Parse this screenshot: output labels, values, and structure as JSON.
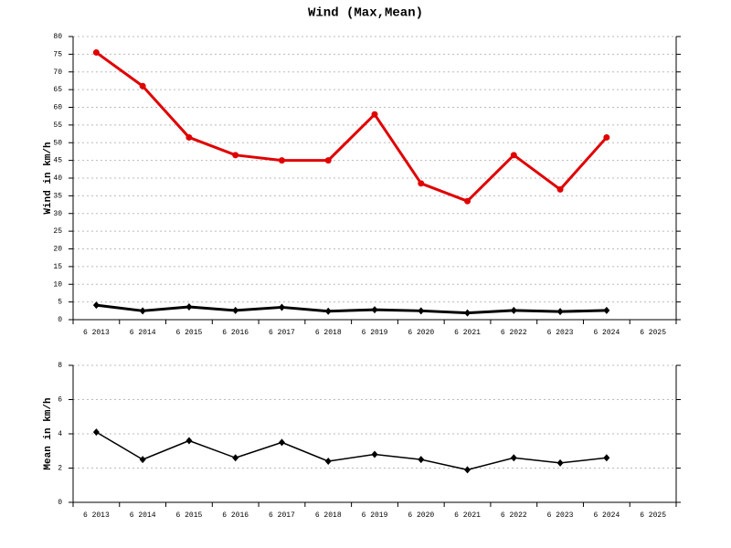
{
  "chart_data": [
    {
      "type": "line",
      "title": "Wind (Max,Mean)",
      "y_label": "Wind in km/h",
      "categories": [
        "6 2013",
        "6 2014",
        "6 2015",
        "6 2016",
        "6 2017",
        "6 2018",
        "6 2019",
        "6 2020",
        "6 2021",
        "6 2022",
        "6 2023",
        "6 2024",
        "6 2025"
      ],
      "series": [
        {
          "color": "#e00000",
          "marker": "circle",
          "values": [
            75.5,
            66,
            51.5,
            46.5,
            45,
            45,
            58,
            38.5,
            33.5,
            46.5,
            36.8,
            51.5,
            null
          ]
        },
        {
          "color": "#000000",
          "marker": "diamond",
          "values": [
            4.1,
            2.5,
            3.6,
            2.6,
            3.5,
            2.4,
            2.8,
            2.5,
            1.9,
            2.6,
            2.3,
            2.6,
            null
          ]
        }
      ],
      "ylim": [
        0,
        80
      ],
      "yticks": [
        0,
        5,
        10,
        15,
        20,
        25,
        30,
        35,
        40,
        45,
        50,
        55,
        60,
        65,
        70,
        75,
        80
      ],
      "grid": true
    },
    {
      "type": "line",
      "y_label": "Mean in km/h",
      "categories": [
        "6 2013",
        "6 2014",
        "6 2015",
        "6 2016",
        "6 2017",
        "6 2018",
        "6 2019",
        "6 2020",
        "6 2021",
        "6 2022",
        "6 2023",
        "6 2024",
        "6 2025"
      ],
      "series": [
        {
          "color": "#000000",
          "marker": "diamond",
          "values": [
            4.1,
            2.5,
            3.6,
            2.6,
            3.5,
            2.4,
            2.8,
            2.5,
            1.9,
            2.6,
            2.3,
            2.6,
            null
          ]
        }
      ],
      "ylim": [
        0,
        8
      ],
      "yticks": [
        0,
        2,
        4,
        6,
        8
      ],
      "grid": true
    }
  ]
}
